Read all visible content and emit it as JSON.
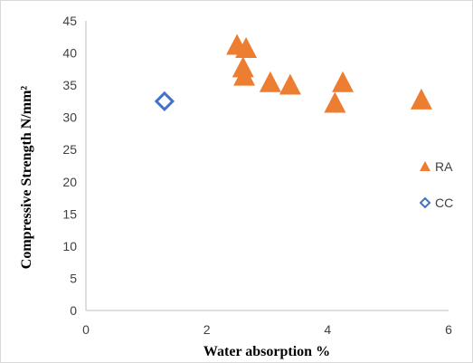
{
  "chart_data": {
    "type": "scatter",
    "xlabel": "Water absorption %",
    "ylabel": "Compressive Strength N/mm²",
    "xlim": [
      0,
      6
    ],
    "ylim": [
      0,
      45
    ],
    "x_ticks": [
      0,
      2,
      4,
      6
    ],
    "y_ticks": [
      0,
      5,
      10,
      15,
      20,
      25,
      30,
      35,
      40,
      45
    ],
    "grid": false,
    "legend_position": "right",
    "series": [
      {
        "name": "RA",
        "marker": "triangle",
        "color": "#ED7D31",
        "points": [
          {
            "x": 2.5,
            "y": 41.0
          },
          {
            "x": 2.65,
            "y": 40.5
          },
          {
            "x": 2.6,
            "y": 37.5
          },
          {
            "x": 2.62,
            "y": 36.2
          },
          {
            "x": 3.05,
            "y": 35.2
          },
          {
            "x": 3.38,
            "y": 34.8
          },
          {
            "x": 4.25,
            "y": 35.2
          },
          {
            "x": 4.12,
            "y": 32.0
          },
          {
            "x": 5.55,
            "y": 32.5
          }
        ]
      },
      {
        "name": "CC",
        "marker": "diamond",
        "color": "#4472C4",
        "points": [
          {
            "x": 1.3,
            "y": 32.5
          }
        ]
      }
    ]
  }
}
